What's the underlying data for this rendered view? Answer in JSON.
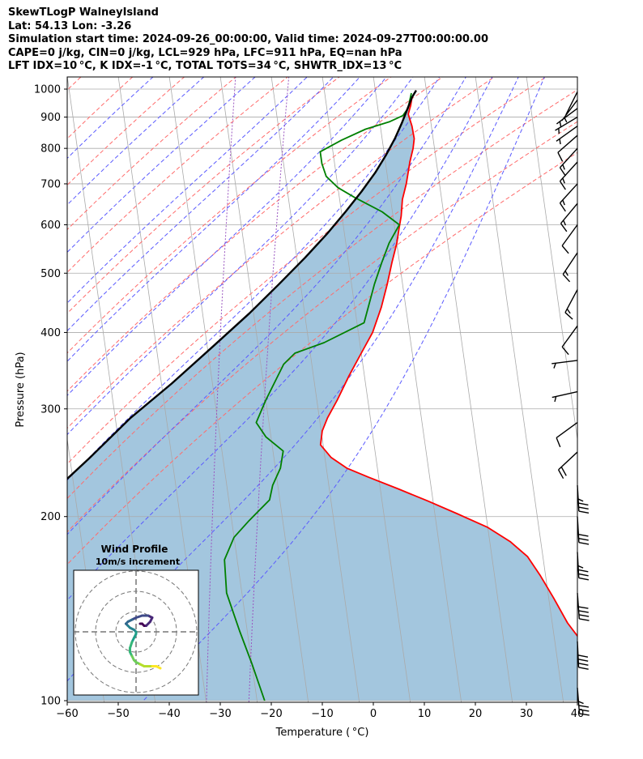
{
  "header": {
    "lines": [
      "SkewTLogP WalneyIsland",
      "Lat: 54.13   Lon: -3.26",
      "Simulation start time: 2024-09-26_00:00:00, Valid time: 2024-09-27T00:00:00.00",
      "CAPE=0 j/kg, CIN=0 j/kg, LCL=929 hPa, LFC=911 hPa, EQ=nan hPa",
      "LFT IDX=10 °C, K IDX=-1 °C, TOTAL TOTS=34 °C, SHWTR_IDX=13 °C"
    ]
  },
  "chart_data": [
    {
      "type": "line",
      "subtype": "skew-t log-p",
      "xlabel": "Temperature ( °C)",
      "ylabel": "Pressure (hPa)",
      "xlim": [
        -60,
        40
      ],
      "ylim": [
        1050,
        100
      ],
      "y_scale": "log",
      "grid": true,
      "x_ticks": [
        "−60",
        "−50",
        "−40",
        "−30",
        "−20",
        "−10",
        "0",
        "10",
        "20",
        "30",
        "40"
      ],
      "y_ticks": [
        "100",
        "200",
        "300",
        "400",
        "500",
        "600",
        "700",
        "800",
        "900",
        "1000"
      ],
      "colors": {
        "temperature": "#ff0000",
        "dewpoint": "#008000",
        "parcel": "#000000",
        "shade": "#a3c6de",
        "dry_adiabat": "#ff6b6b",
        "moist_adiabat": "#5a5aff",
        "mixing_ratio": "#9a55c0",
        "isotherm": "#aaaaaa"
      },
      "series": [
        {
          "key": "temperature",
          "points": [
            [
              8,
              995
            ],
            [
              7,
              970
            ],
            [
              6.5,
              940
            ],
            [
              5.8,
              910
            ],
            [
              6.2,
              870
            ],
            [
              6.3,
              830
            ],
            [
              5.8,
              800
            ],
            [
              4.8,
              760
            ],
            [
              3.5,
              700
            ],
            [
              2.3,
              660
            ],
            [
              1.6,
              620
            ],
            [
              0.8,
              590
            ],
            [
              0,
              560
            ],
            [
              -1.5,
              520
            ],
            [
              -3,
              480
            ],
            [
              -4.8,
              440
            ],
            [
              -7.2,
              400
            ],
            [
              -10,
              370
            ],
            [
              -13,
              340
            ],
            [
              -16,
              310
            ],
            [
              -18.4,
              290
            ],
            [
              -19.8,
              276
            ],
            [
              -20.5,
              262
            ],
            [
              -18.8,
              250
            ],
            [
              -16,
              240
            ],
            [
              -12,
              232
            ],
            [
              -6.5,
              222
            ],
            [
              -1,
              212
            ],
            [
              4.5,
              202
            ],
            [
              10,
              192
            ],
            [
              14,
              182
            ],
            [
              17,
              172
            ],
            [
              19,
              160
            ],
            [
              21,
              147
            ],
            [
              23,
              134
            ],
            [
              25.5,
              124
            ],
            [
              28,
              115
            ],
            [
              30.5,
              107
            ],
            [
              33,
              100
            ]
          ]
        },
        {
          "key": "dewpoint",
          "points": [
            [
              7,
              985
            ],
            [
              6.5,
              960
            ],
            [
              5.9,
              930
            ],
            [
              4.7,
              905
            ],
            [
              2,
              885
            ],
            [
              -3,
              860
            ],
            [
              -8,
              825
            ],
            [
              -12.5,
              790
            ],
            [
              -12.5,
              755
            ],
            [
              -12,
              720
            ],
            [
              -10,
              690
            ],
            [
              -7,
              665
            ],
            [
              -2,
              630
            ],
            [
              1,
              600
            ],
            [
              -1.5,
              560
            ],
            [
              -3.5,
              520
            ],
            [
              -5.5,
              480
            ],
            [
              -8.6,
              415
            ],
            [
              -17,
              385
            ],
            [
              -23,
              370
            ],
            [
              -25.5,
              355
            ],
            [
              -30,
              310
            ],
            [
              -32.5,
              285
            ],
            [
              -31,
              270
            ],
            [
              -28,
              256
            ],
            [
              -29,
              240
            ],
            [
              -31,
              225
            ],
            [
              -32,
              213
            ],
            [
              -36.6,
              197
            ],
            [
              -40,
              185
            ],
            [
              -42.5,
              170
            ],
            [
              -43,
              150
            ],
            [
              -41.5,
              130
            ],
            [
              -40,
              115
            ],
            [
              -38.5,
              100
            ]
          ]
        },
        {
          "key": "parcel",
          "points": [
            [
              8,
              995
            ],
            [
              7,
              970
            ],
            [
              6,
              935
            ],
            [
              4.3,
              880
            ],
            [
              2.5,
              830
            ],
            [
              0.3,
              780
            ],
            [
              -2.3,
              730
            ],
            [
              -5.5,
              680
            ],
            [
              -9.2,
              630
            ],
            [
              -13.4,
              580
            ],
            [
              -18.4,
              530
            ],
            [
              -24.2,
              480
            ],
            [
              -30.8,
              430
            ],
            [
              -38.8,
              380
            ],
            [
              -48,
              330
            ],
            [
              -57,
              290
            ],
            [
              -66,
              250
            ],
            [
              -77,
              210
            ],
            [
              -86,
              180
            ],
            [
              -97,
              150
            ],
            [
              -108,
              125
            ],
            [
              -120,
              100
            ]
          ]
        }
      ],
      "dry_adiabats_theta_K": [
        203,
        213,
        223,
        233,
        243,
        253,
        263,
        273,
        283,
        293,
        303,
        313,
        323,
        333
      ],
      "moist_adiabats_C": [
        -40,
        -30,
        -20,
        -10,
        -5,
        0,
        5,
        10,
        15,
        20,
        25,
        30,
        35
      ],
      "mixing_ratio_gkg": [
        0.0004,
        0.001
      ],
      "wind_barbs": [
        {
          "p": 105,
          "u": -3,
          "v": 38
        },
        {
          "p": 125,
          "u": -2,
          "v": 42
        },
        {
          "p": 150,
          "u": -3,
          "v": 41
        },
        {
          "p": 175,
          "u": -2,
          "v": 37
        },
        {
          "p": 200,
          "u": -2,
          "v": 34
        },
        {
          "p": 225,
          "u": -2,
          "v": 35
        },
        {
          "p": 255,
          "u": 15,
          "v": 14
        },
        {
          "p": 285,
          "u": 11,
          "v": 8
        },
        {
          "p": 320,
          "u": 9,
          "v": 2
        },
        {
          "p": 360,
          "u": 8,
          "v": 1
        },
        {
          "p": 410,
          "u": 8,
          "v": 11
        },
        {
          "p": 470,
          "u": 8,
          "v": 15
        },
        {
          "p": 540,
          "u": 10,
          "v": 15
        },
        {
          "p": 600,
          "u": 8,
          "v": 11
        },
        {
          "p": 650,
          "u": 10,
          "v": 12
        },
        {
          "p": 700,
          "u": 10,
          "v": 11
        },
        {
          "p": 760,
          "u": 10,
          "v": 11
        },
        {
          "p": 800,
          "u": 10,
          "v": 11
        },
        {
          "p": 840,
          "u": 8,
          "v": 7
        },
        {
          "p": 870,
          "u": 7,
          "v": 5
        },
        {
          "p": 900,
          "u": 5,
          "v": 3
        },
        {
          "p": 930,
          "u": 4,
          "v": 3
        },
        {
          "p": 960,
          "u": 3,
          "v": 4
        },
        {
          "p": 990,
          "u": 2,
          "v": 4
        }
      ]
    },
    {
      "type": "line",
      "subtype": "hodograph",
      "title": "Wind Profile",
      "subtitle": "10m/s increment",
      "rings_ms": [
        10,
        20,
        30
      ],
      "points": [
        [
          2,
          4
        ],
        [
          3,
          4
        ],
        [
          4,
          3
        ],
        [
          5,
          3
        ],
        [
          7,
          5
        ],
        [
          8,
          7
        ],
        [
          6,
          8
        ],
        [
          3,
          8
        ],
        [
          0,
          7
        ],
        [
          -2,
          6
        ],
        [
          -4,
          5
        ],
        [
          -5,
          4
        ],
        [
          -4,
          3
        ],
        [
          -3,
          2
        ],
        [
          -1,
          1
        ],
        [
          0,
          0
        ],
        [
          0,
          -1
        ],
        [
          -1,
          -3
        ],
        [
          -2,
          -5
        ],
        [
          -3,
          -8
        ],
        [
          -3,
          -10
        ],
        [
          -2,
          -12
        ],
        [
          -1,
          -14
        ],
        [
          0,
          -15
        ],
        [
          2,
          -16
        ],
        [
          4,
          -17
        ],
        [
          6,
          -17
        ],
        [
          8,
          -17
        ],
        [
          10,
          -17
        ],
        [
          12,
          -18
        ]
      ]
    }
  ]
}
